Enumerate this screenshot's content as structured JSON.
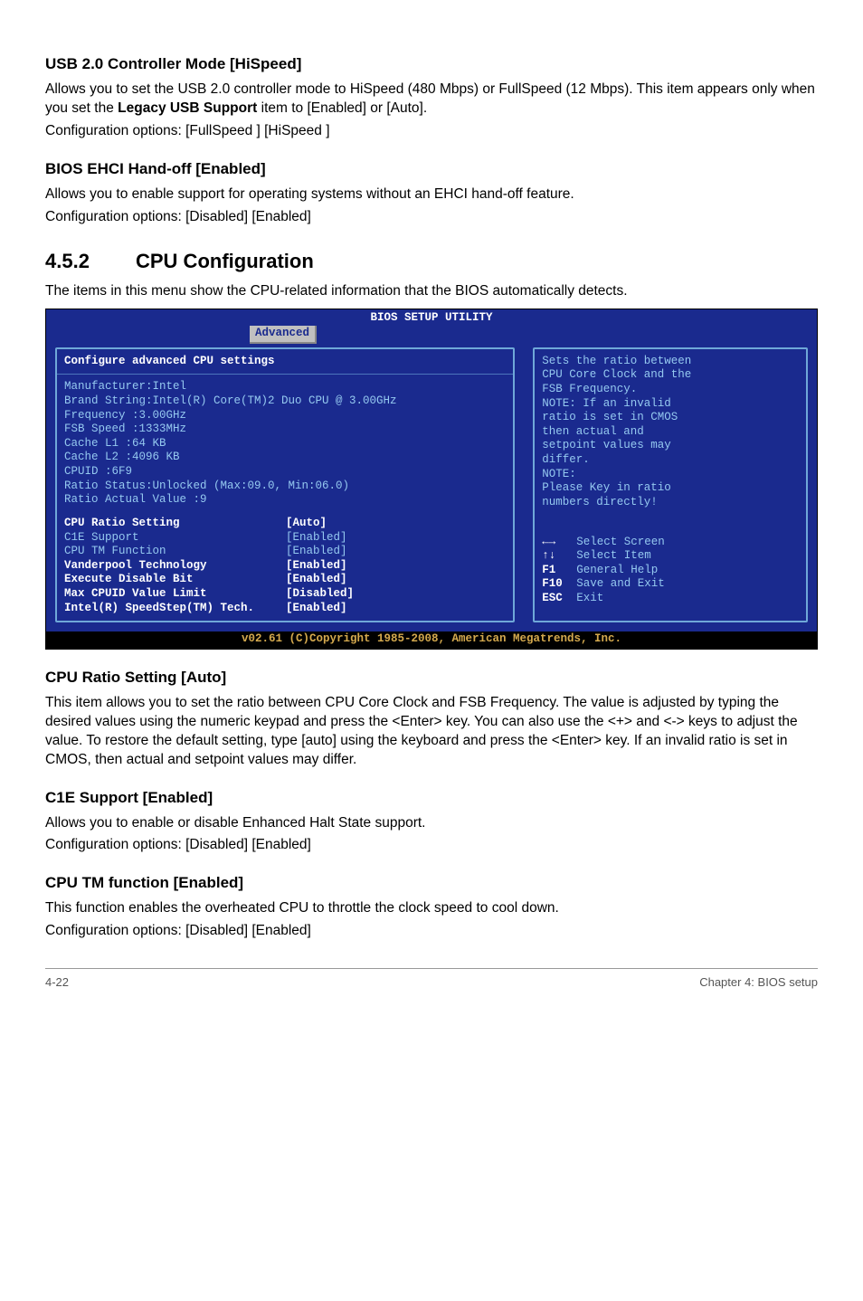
{
  "sections": {
    "usb": {
      "heading": "USB 2.0 Controller Mode [HiSpeed]",
      "p1_a": "Allows you to set the USB 2.0 controller mode to HiSpeed (480 Mbps) or FullSpeed (12 Mbps). This item appears only when you set the ",
      "p1_bold": "Legacy USB Support",
      "p1_b": " item to [Enabled] or [Auto].",
      "p2": "Configuration options: [FullSpeed ] [HiSpeed ]"
    },
    "ehci": {
      "heading": "BIOS EHCI Hand-off [Enabled]",
      "p1": "Allows you to enable support for operating systems without an EHCI hand-off feature.",
      "p2": "Configuration options: [Disabled] [Enabled]"
    },
    "cpuconf": {
      "num": "4.5.2",
      "title": "CPU Configuration",
      "intro": "The items in this menu show the CPU-related information that the BIOS automatically detects."
    },
    "ratio": {
      "heading": "CPU Ratio Setting [Auto]",
      "p1": "This item allows you to set the ratio between CPU Core Clock and FSB Frequency. The value is adjusted by typing the desired values using the numeric keypad and press the <Enter> key. You can also use the <+> and <-> keys to adjust the value. To restore the default setting, type [auto] using the keyboard and press the <Enter> key. If an invalid ratio is set in CMOS, then actual and setpoint values may differ."
    },
    "c1e": {
      "heading": "C1E Support [Enabled]",
      "p1": "Allows you to enable or disable Enhanced Halt State support.",
      "p2": "Configuration options: [Disabled] [Enabled]"
    },
    "tm": {
      "heading": "CPU TM function [Enabled]",
      "p1": "This function enables the overheated CPU to throttle the clock speed to cool down.",
      "p2": "Configuration options: [Disabled] [Enabled]"
    }
  },
  "bios": {
    "title": "BIOS SETUP UTILITY",
    "tab": "Advanced",
    "left_heading": "Configure advanced CPU settings",
    "info": [
      "Manufacturer:Intel",
      "Brand String:Intel(R) Core(TM)2 Duo CPU @ 3.00GHz",
      "Frequency   :3.00GHz",
      "FSB Speed   :1333MHz",
      "Cache L1    :64 KB",
      "Cache L2    :4096 KB",
      "CPUID       :6F9",
      "Ratio Status:Unlocked (Max:09.0, Min:06.0)",
      "Ratio Actual Value  :9"
    ],
    "settings": [
      {
        "label": "CPU Ratio Setting",
        "value": "[Auto]",
        "white": true
      },
      {
        "label": "C1E Support",
        "value": "[Enabled]",
        "white": false
      },
      {
        "label": "CPU TM Function",
        "value": "[Enabled]",
        "white": false
      },
      {
        "label": "Vanderpool Technology",
        "value": "[Enabled]",
        "white": true
      },
      {
        "label": "Execute Disable Bit",
        "value": "[Enabled]",
        "white": true
      },
      {
        "label": "Max CPUID Value Limit",
        "value": "[Disabled]",
        "white": true
      },
      {
        "label": "Intel(R) SpeedStep(TM) Tech.",
        "value": "[Enabled]",
        "white": true
      }
    ],
    "help": [
      "Sets the ratio between",
      "CPU Core Clock and the",
      "FSB Frequency.",
      "NOTE: If an invalid",
      "ratio is set in CMOS",
      "then actual and",
      "setpoint values may",
      "differ.",
      "NOTE:",
      "Please Key in ratio",
      "numbers directly!"
    ],
    "keys": [
      {
        "icon": "←→",
        "label": "Select Screen"
      },
      {
        "icon": "↑↓",
        "label": "Select Item"
      },
      {
        "icon": "F1",
        "label": "General Help"
      },
      {
        "icon": "F10",
        "label": "Save and Exit"
      },
      {
        "icon": "ESC",
        "label": "Exit"
      }
    ],
    "footer": "v02.61 (C)Copyright 1985-2008, American Megatrends, Inc."
  },
  "pagefooter": {
    "left": "4-22",
    "right": "Chapter 4: BIOS setup"
  }
}
